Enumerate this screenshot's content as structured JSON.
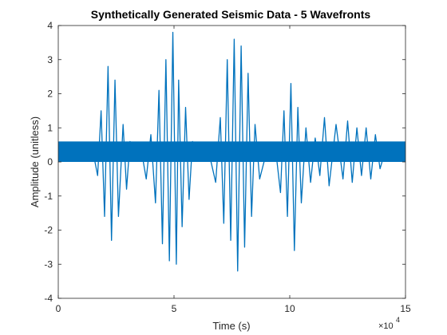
{
  "chart_data": {
    "type": "line",
    "title": "Synthetically Generated Seismic Data - 5 Wavefronts",
    "xlabel": "Time (s)",
    "ylabel": "Amplitude (unitless)",
    "x_multiplier_label": "×10",
    "x_multiplier_exponent": "4",
    "xlim": [
      0,
      15
    ],
    "ylim": [
      -4,
      4
    ],
    "x_ticks": [
      0,
      5,
      10,
      15
    ],
    "x_tick_labels": [
      "0",
      "5",
      "10",
      "15"
    ],
    "y_ticks": [
      -4,
      -3,
      -2,
      -1,
      0,
      1,
      2,
      3,
      4
    ],
    "y_tick_labels": [
      "-4",
      "-3",
      "-2",
      "-1",
      "0",
      "1",
      "2",
      "3",
      "4"
    ],
    "grid": false,
    "line_color": "#0072BD",
    "noise_band": [
      0,
      0.6
    ],
    "series": [
      {
        "x": [
          0,
          1.5,
          1.7,
          1.85,
          2.0,
          2.15,
          2.3,
          2.45,
          2.6,
          2.8,
          2.95,
          3.1,
          3.25,
          3.4,
          3.6,
          3.8,
          4.0,
          4.2,
          4.35,
          4.5,
          4.65,
          4.8,
          4.95,
          5.1,
          5.2,
          5.35,
          5.5,
          5.65,
          5.8,
          6.0,
          6.2,
          6.5,
          6.8,
          7.0,
          7.15,
          7.3,
          7.45,
          7.6,
          7.75,
          7.9,
          8.05,
          8.2,
          8.35,
          8.5,
          8.7,
          9.0,
          9.4,
          9.6,
          9.75,
          9.9,
          10.05,
          10.2,
          10.35,
          10.5,
          10.7,
          10.9,
          11.1,
          11.3,
          11.5,
          11.7,
          12.0,
          12.3,
          12.5,
          12.7,
          12.9,
          13.1,
          13.3,
          13.5,
          13.7,
          13.9,
          14.2,
          14.5,
          14.8,
          15.0
        ],
        "y": [
          0.3,
          0.3,
          -0.4,
          1.5,
          -1.6,
          2.8,
          -2.3,
          2.4,
          -1.6,
          1.1,
          -0.8,
          0.6,
          0.3,
          0.3,
          0.3,
          -0.5,
          0.8,
          -1.2,
          2.1,
          -2.4,
          3.0,
          -2.9,
          3.8,
          -3.0,
          2.4,
          -1.9,
          1.6,
          -1.1,
          0.6,
          0.3,
          0.3,
          0.3,
          -0.6,
          1.3,
          -1.8,
          3.0,
          -2.3,
          3.6,
          -3.2,
          3.4,
          -2.5,
          2.6,
          -1.6,
          1.1,
          -0.5,
          0.3,
          0.3,
          -0.9,
          1.5,
          -1.6,
          2.3,
          -2.6,
          1.6,
          -1.2,
          1.0,
          -0.6,
          0.7,
          -0.4,
          1.3,
          -0.7,
          1.1,
          -0.5,
          1.2,
          -0.6,
          1.0,
          -0.4,
          1.0,
          -0.5,
          0.8,
          -0.2,
          0.5,
          0.3,
          0.3,
          0.3
        ]
      }
    ]
  }
}
